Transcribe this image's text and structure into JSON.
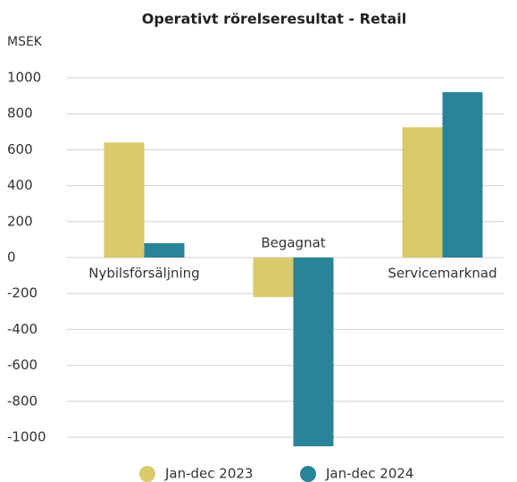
{
  "chart_data": {
    "type": "bar",
    "title": "Operativt rörelseresultat - Retail",
    "y_label": "MSEK",
    "categories": [
      "Nybilsförsäljning",
      "Begagnat",
      "Servicemarknad"
    ],
    "series": [
      {
        "name": "Jan-dec 2023",
        "color": "#d9ca6c",
        "values": [
          640,
          -220,
          725
        ]
      },
      {
        "name": "Jan-dec 2024",
        "color": "#2a8499",
        "values": [
          80,
          -1050,
          920
        ]
      }
    ],
    "ylim": [
      -1000,
      1000
    ],
    "yticks": [
      1000,
      800,
      600,
      400,
      200,
      0,
      -200,
      -400,
      -600,
      -800,
      -1000
    ],
    "grid": true
  }
}
